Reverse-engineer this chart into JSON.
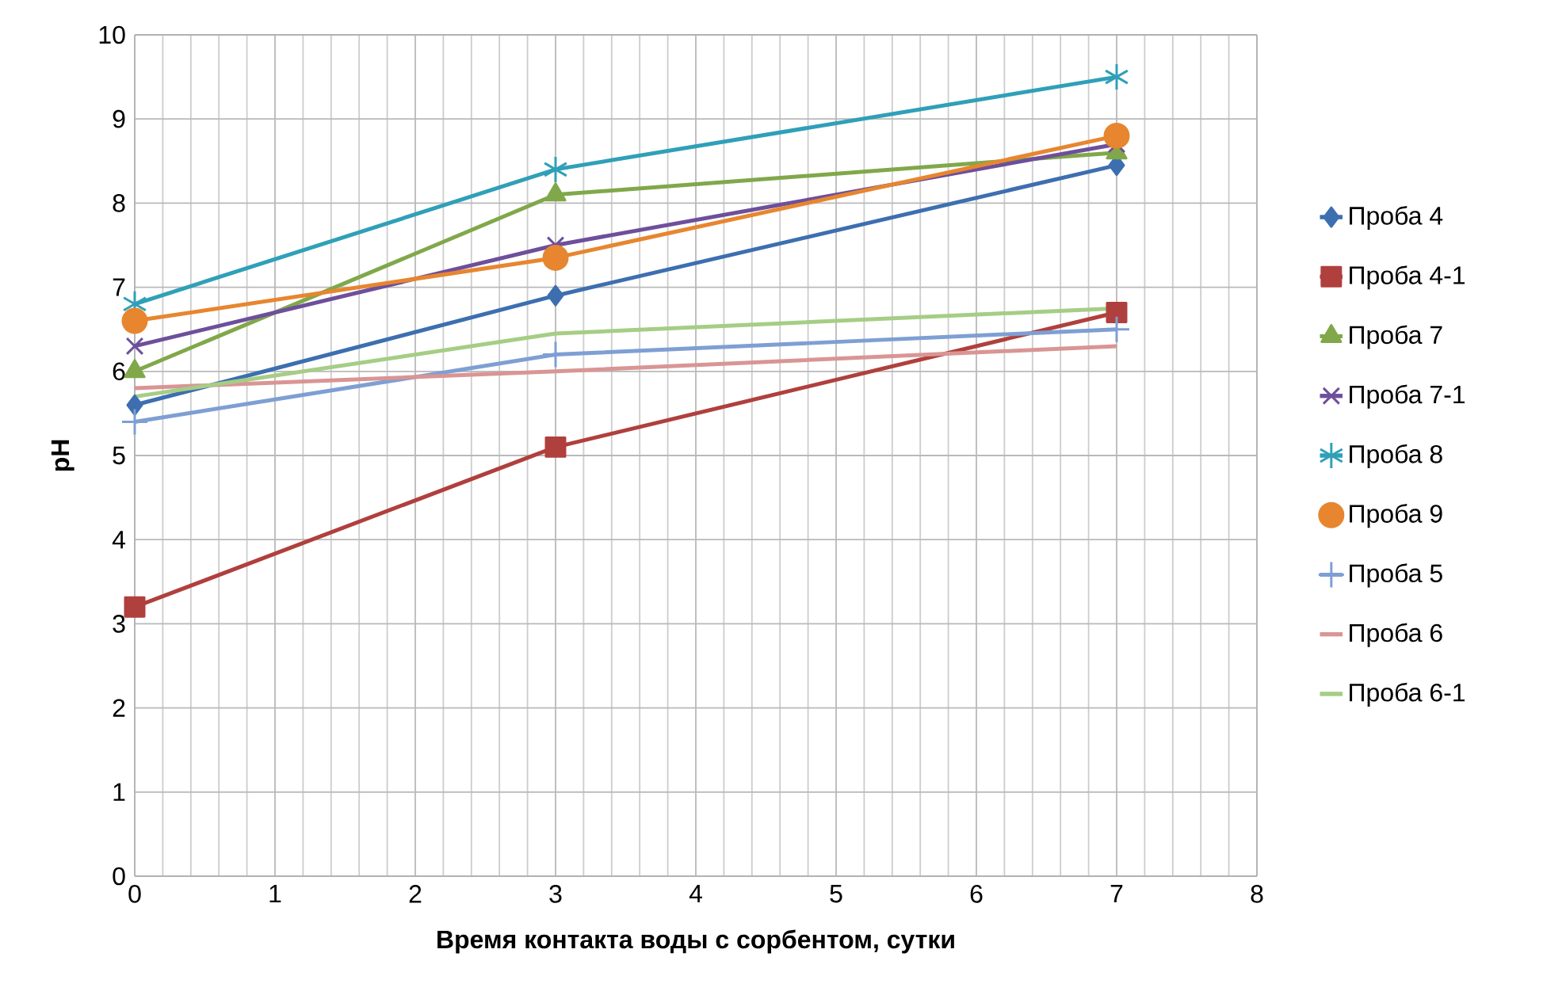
{
  "chart_data": {
    "type": "line",
    "xlabel": "Время контакта воды с сорбентом, сутки",
    "ylabel": "pH",
    "xlim": [
      0,
      8
    ],
    "xticks": [
      0,
      1,
      2,
      3,
      4,
      5,
      6,
      7,
      8
    ],
    "ylim": [
      0,
      10
    ],
    "yticks": [
      0,
      1,
      2,
      3,
      4,
      5,
      6,
      7,
      8,
      9,
      10
    ],
    "grid": true,
    "legend": "right",
    "line_style": "solid",
    "x": [
      0,
      3,
      7
    ],
    "series": [
      {
        "name": "Проба 4",
        "color": "#3d6fb0",
        "marker": "diamond",
        "values": [
          5.6,
          6.9,
          8.45
        ]
      },
      {
        "name": "Проба 4-1",
        "color": "#b0403d",
        "marker": "square",
        "values": [
          3.2,
          5.1,
          6.7
        ]
      },
      {
        "name": "Проба 7",
        "color": "#80a84a",
        "marker": "triangle",
        "values": [
          6.0,
          8.1,
          8.6
        ]
      },
      {
        "name": "Проба 7-1",
        "color": "#6e4f9b",
        "marker": "cross",
        "values": [
          6.3,
          7.5,
          8.7
        ]
      },
      {
        "name": "Проба 8",
        "color": "#2fa0b8",
        "marker": "cross",
        "values": [
          6.8,
          8.4,
          9.5
        ]
      },
      {
        "name": "Проба 9",
        "color": "#e7862f",
        "marker": "circle",
        "values": [
          6.6,
          7.35,
          8.8
        ]
      },
      {
        "name": "Проба 5",
        "color": "#7e9fd3",
        "marker": "cross",
        "values": [
          5.4,
          6.2,
          6.5
        ]
      },
      {
        "name": "Проба 6",
        "color": "#d99594",
        "marker": "none",
        "values": [
          5.8,
          6.0,
          6.3
        ]
      },
      {
        "name": "Проба 6-1",
        "color": "#a6cd85",
        "marker": "none",
        "values": [
          5.7,
          6.45,
          6.75
        ]
      }
    ]
  }
}
